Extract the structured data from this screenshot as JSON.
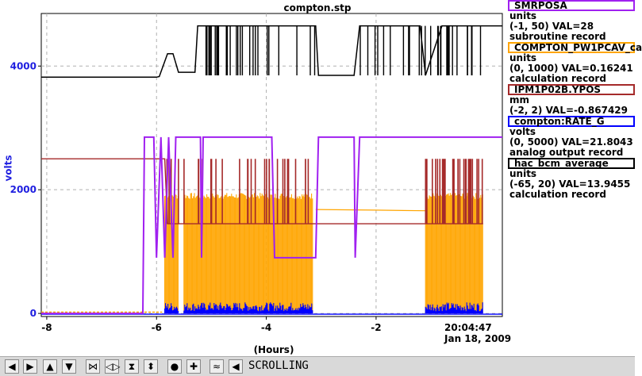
{
  "title": "compton.stp",
  "ylabel": "volts",
  "xlabel": "(Hours)",
  "timestamp": {
    "time": "20:04:47",
    "date": "Jan 18, 2009"
  },
  "chart_data": {
    "type": "line",
    "title": "compton.stp",
    "xlabel": "(Hours)",
    "ylabel": "volts",
    "xlim": [
      -8.1,
      0.3
    ],
    "ylim": [
      -50,
      4850
    ],
    "xticks": [
      -8,
      -6,
      -4,
      -2
    ],
    "yticks": [
      0,
      2000,
      4000
    ],
    "grid": true,
    "series": [
      {
        "name": "SMRPOSA",
        "color": "#a020f0",
        "points": [
          [
            -8.1,
            0
          ],
          [
            -6.25,
            0
          ],
          [
            -6.22,
            2850
          ],
          [
            -6.05,
            2850
          ],
          [
            -6.0,
            900
          ],
          [
            -5.92,
            2850
          ],
          [
            -5.85,
            900
          ],
          [
            -5.78,
            2850
          ],
          [
            -5.7,
            900
          ],
          [
            -5.65,
            2850
          ],
          [
            -5.2,
            2850
          ],
          [
            -5.18,
            900
          ],
          [
            -5.15,
            2850
          ],
          [
            -3.9,
            2850
          ],
          [
            -3.85,
            900
          ],
          [
            -3.1,
            900
          ],
          [
            -3.05,
            2850
          ],
          [
            -2.4,
            2850
          ],
          [
            -2.38,
            900
          ],
          [
            -2.3,
            2850
          ],
          [
            0.3,
            2850
          ]
        ]
      },
      {
        "name": "COMPTON_PW1PCAV_ca",
        "color": "#ffa500",
        "envelope": [
          [
            -5.85,
            1900
          ],
          [
            -5.6,
            1900
          ],
          [
            -5.2,
            1950
          ],
          [
            -4.6,
            1900
          ],
          [
            -3.9,
            1950
          ],
          [
            -3.15,
            1900
          ],
          [
            -1.0,
            1900
          ],
          [
            -0.05,
            1900
          ]
        ],
        "active": [
          [
            -5.85,
            -5.6
          ],
          [
            -5.5,
            -3.15
          ],
          [
            -1.1,
            -0.05
          ]
        ],
        "quiet": [
          [
            -3.1,
            1680
          ],
          [
            -2.0,
            1670
          ],
          [
            -1.1,
            1660
          ]
        ]
      },
      {
        "name": "IPM1P02B.YPOS",
        "color": "#a52a2a",
        "points": [
          [
            -8.1,
            2500
          ],
          [
            -5.85,
            2500
          ],
          [
            -5.8,
            1450
          ],
          [
            -3.9,
            1450
          ],
          [
            -3.1,
            1450
          ],
          [
            -2.3,
            1450
          ],
          [
            -0.05,
            1450
          ]
        ]
      },
      {
        "name": "compton:RATE_G",
        "color": "#0000ff",
        "active": [
          [
            -5.85,
            -5.6
          ],
          [
            -5.5,
            -3.15
          ],
          [
            -1.1,
            -0.05
          ]
        ],
        "level": 120
      },
      {
        "name": "hac_bcm_average",
        "color": "#000000",
        "points": [
          [
            -8.1,
            3820
          ],
          [
            -6.0,
            3820
          ],
          [
            -5.95,
            3830
          ],
          [
            -5.8,
            4200
          ],
          [
            -5.7,
            4200
          ],
          [
            -5.6,
            3900
          ],
          [
            -5.3,
            3900
          ],
          [
            -5.25,
            4650
          ],
          [
            -3.1,
            4650
          ],
          [
            -3.05,
            3850
          ],
          [
            -2.4,
            3850
          ],
          [
            -2.3,
            4650
          ],
          [
            -1.2,
            4650
          ],
          [
            -1.1,
            3850
          ],
          [
            -0.8,
            4650
          ],
          [
            0.3,
            4650
          ]
        ]
      }
    ]
  },
  "legend": [
    {
      "name": "SMRPOSA",
      "color": "#a020f0",
      "units": "units",
      "range": "(-1, 50) VAL=28",
      "type": "subroutine record"
    },
    {
      "name": "COMPTON_PW1PCAV_ca",
      "color": "#ffa500",
      "units": "units",
      "range": "(0, 1000) VAL=0.16241",
      "type": "calculation record"
    },
    {
      "name": "IPM1P02B.YPOS",
      "color": "#a52a2a",
      "units": "mm",
      "range": "(-2, 2) VAL=-0.867429",
      "type": ""
    },
    {
      "name": "compton:RATE_G",
      "color": "#0000ff",
      "units": "volts",
      "range": "(0, 5000) VAL=21.8043",
      "type": "analog output record"
    },
    {
      "name": "hac_bcm_average",
      "color": "#000000",
      "units": "units",
      "range": "(-65, 20) VAL=13.9455",
      "type": "calculation record"
    }
  ],
  "toolbar": {
    "buttons": [
      {
        "icon": "arrow-left-icon",
        "glyph": "◀"
      },
      {
        "icon": "arrow-right-icon",
        "glyph": "▶"
      },
      {
        "icon": "arrow-up-icon",
        "glyph": "▲"
      },
      {
        "icon": "arrow-down-icon",
        "glyph": "▼"
      },
      {
        "icon": "zoom-in-horizontal-icon",
        "glyph": "⋈"
      },
      {
        "icon": "zoom-out-horizontal-icon",
        "glyph": "◁▷"
      },
      {
        "icon": "zoom-in-vertical-icon",
        "glyph": "⧗"
      },
      {
        "icon": "zoom-out-vertical-icon",
        "glyph": "⬍"
      },
      {
        "icon": "record-icon",
        "glyph": "●"
      },
      {
        "icon": "add-icon",
        "glyph": "✚"
      },
      {
        "icon": "autoscale-icon",
        "glyph": "≈"
      },
      {
        "icon": "scroll-icon",
        "glyph": "◀"
      }
    ],
    "mode": "SCROLLING"
  }
}
